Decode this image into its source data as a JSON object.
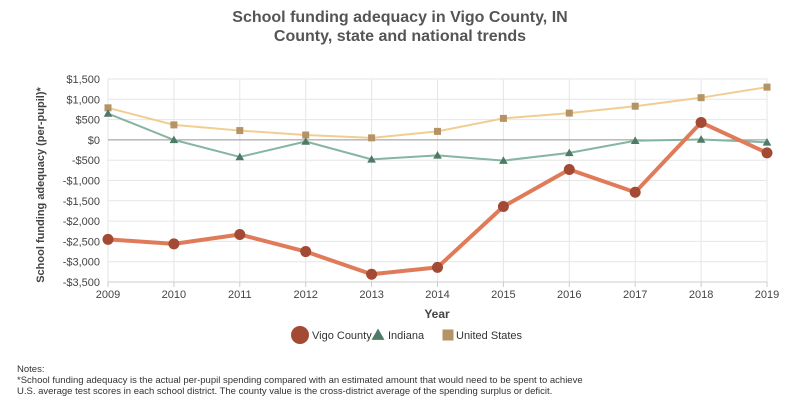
{
  "chart_data": {
    "type": "line",
    "title": "School funding adequacy in Vigo County, IN",
    "subtitle": "County, state and national trends",
    "xlabel": "Year",
    "ylabel": "School funding adequacy (per-pupil)*",
    "x": [
      "2009",
      "2010",
      "2011",
      "2012",
      "2013",
      "2014",
      "2015",
      "2016",
      "2017",
      "2018",
      "2019"
    ],
    "ylim": [
      -3500,
      1500
    ],
    "yticks": [
      1500,
      1000,
      500,
      0,
      -500,
      -1000,
      -1500,
      -2000,
      -2500,
      -3000,
      -3500
    ],
    "ytick_labels": [
      "$1,500",
      "$1,000",
      "$500",
      "$0",
      "-$500",
      "-$1,000",
      "-$1,500",
      "-$2,000",
      "-$2,500",
      "-$3,000",
      "-$3,500"
    ],
    "grid": true,
    "legend_position": "bottom-center",
    "series": [
      {
        "name": "Vigo County",
        "color": "#e07b5a",
        "marker_color": "#a34a35",
        "marker": "circle",
        "values": [
          -2450,
          -2560,
          -2330,
          -2750,
          -3310,
          -3140,
          -1640,
          -730,
          -1290,
          430,
          -320
        ]
      },
      {
        "name": "Indiana",
        "color": "#86b5a1",
        "marker_color": "#4e7a66",
        "marker": "triangle",
        "values": [
          650,
          0,
          -420,
          -40,
          -480,
          -380,
          -510,
          -320,
          -20,
          10,
          -60
        ]
      },
      {
        "name": "United States",
        "color": "#f2cd92",
        "marker_color": "#b49365",
        "marker": "square",
        "values": [
          790,
          370,
          230,
          120,
          50,
          210,
          530,
          660,
          830,
          1040,
          1300
        ]
      }
    ]
  },
  "notes": {
    "heading": "Notes:",
    "line1": "*School funding adequacy is the actual per-pupil spending compared with an estimated amount that would need to be spent to achieve",
    "line2": "U.S. average test scores in each school district. The county value is the cross-district average of the spending surplus or deficit."
  }
}
